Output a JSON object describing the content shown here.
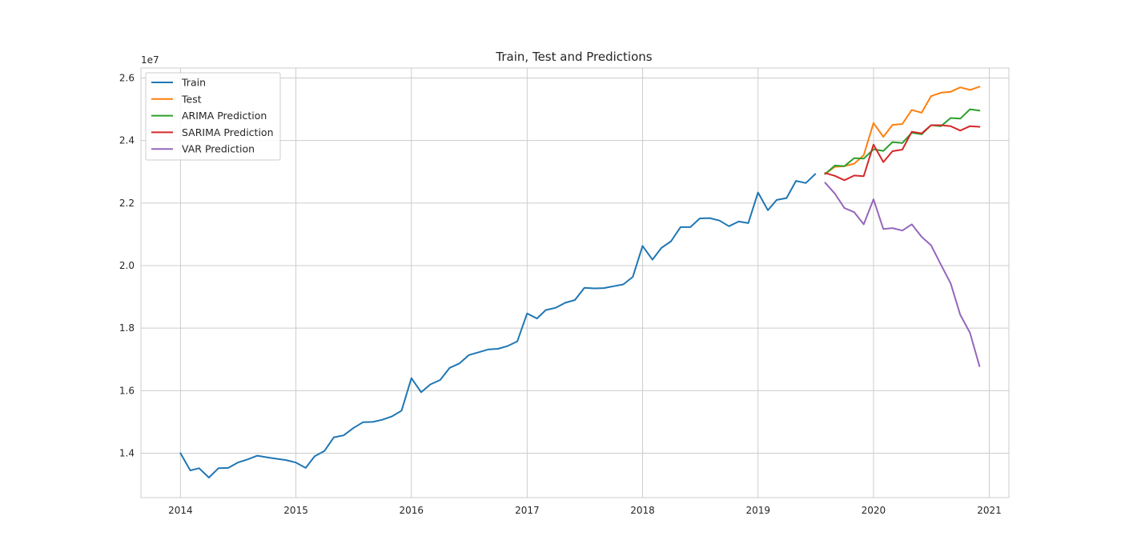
{
  "chart_data": {
    "type": "line",
    "title": "Train, Test and Predictions",
    "xlabel": "",
    "ylabel": "",
    "y_scale_label": "1e7",
    "x_axis_kind": "date",
    "xlim": [
      "2013-08-29",
      "2021-03-04"
    ],
    "ylim": [
      12.58,
      26.32
    ],
    "y_multiplier": 10000000,
    "x_ticks": [
      {
        "date": "2014-01-01",
        "label": "2014"
      },
      {
        "date": "2015-01-01",
        "label": "2015"
      },
      {
        "date": "2016-01-01",
        "label": "2016"
      },
      {
        "date": "2017-01-01",
        "label": "2017"
      },
      {
        "date": "2018-01-01",
        "label": "2018"
      },
      {
        "date": "2019-01-01",
        "label": "2019"
      },
      {
        "date": "2020-01-01",
        "label": "2020"
      },
      {
        "date": "2021-01-01",
        "label": "2021"
      }
    ],
    "y_ticks": [
      {
        "value": 14,
        "label": "1.4"
      },
      {
        "value": 16,
        "label": "1.6"
      },
      {
        "value": 18,
        "label": "1.8"
      },
      {
        "value": 20,
        "label": "2.0"
      },
      {
        "value": 22,
        "label": "2.2"
      },
      {
        "value": 24,
        "label": "2.4"
      },
      {
        "value": 26,
        "label": "2.6"
      }
    ],
    "grid": true,
    "legend_position": "top-left",
    "series": [
      {
        "name": "Train",
        "color": "#1f77b4",
        "x": [
          "2014-01",
          "2014-02",
          "2014-03",
          "2014-04",
          "2014-05",
          "2014-06",
          "2014-07",
          "2014-08",
          "2014-09",
          "2014-10",
          "2014-11",
          "2014-12",
          "2015-01",
          "2015-02",
          "2015-03",
          "2015-04",
          "2015-05",
          "2015-06",
          "2015-07",
          "2015-08",
          "2015-09",
          "2015-10",
          "2015-11",
          "2015-12",
          "2016-01",
          "2016-02",
          "2016-03",
          "2016-04",
          "2016-05",
          "2016-06",
          "2016-07",
          "2016-08",
          "2016-09",
          "2016-10",
          "2016-11",
          "2016-12",
          "2017-01",
          "2017-02",
          "2017-03",
          "2017-04",
          "2017-05",
          "2017-06",
          "2017-07",
          "2017-08",
          "2017-09",
          "2017-10",
          "2017-11",
          "2017-12",
          "2018-01",
          "2018-02",
          "2018-03",
          "2018-04",
          "2018-05",
          "2018-06",
          "2018-07",
          "2018-08",
          "2018-09",
          "2018-10",
          "2018-11",
          "2018-12",
          "2019-01",
          "2019-02",
          "2019-03",
          "2019-04",
          "2019-05",
          "2019-06",
          "2019-07"
        ],
        "values": [
          14.0,
          13.45,
          13.52,
          13.22,
          13.52,
          13.53,
          13.7,
          13.8,
          13.92,
          13.87,
          13.82,
          13.78,
          13.7,
          13.53,
          13.9,
          14.07,
          14.51,
          14.57,
          14.8,
          14.99,
          15.0,
          15.07,
          15.18,
          15.36,
          16.4,
          15.95,
          16.2,
          16.34,
          16.73,
          16.87,
          17.14,
          17.23,
          17.32,
          17.34,
          17.43,
          17.58,
          18.47,
          18.31,
          18.58,
          18.65,
          18.81,
          18.9,
          19.29,
          19.27,
          19.28,
          19.34,
          19.4,
          19.64,
          20.63,
          20.19,
          20.56,
          20.78,
          21.23,
          21.23,
          21.51,
          21.52,
          21.44,
          21.26,
          21.41,
          21.36,
          22.34,
          21.77,
          22.1,
          22.16,
          22.71,
          22.64,
          22.93
        ]
      },
      {
        "name": "Test",
        "color": "#ff7f0e",
        "x": [
          "2019-08",
          "2019-09",
          "2019-10",
          "2019-11",
          "2019-12",
          "2020-01",
          "2020-02",
          "2020-03",
          "2020-04",
          "2020-05",
          "2020-06",
          "2020-07",
          "2020-08",
          "2020-09",
          "2020-10",
          "2020-11",
          "2020-12"
        ],
        "values": [
          22.93,
          23.16,
          23.18,
          23.26,
          23.53,
          24.56,
          24.12,
          24.5,
          24.53,
          24.98,
          24.89,
          25.42,
          25.53,
          25.56,
          25.7,
          25.62,
          25.72
        ]
      },
      {
        "name": "ARIMA Prediction",
        "color": "#2ca02c",
        "x": [
          "2019-08",
          "2019-09",
          "2019-10",
          "2019-11",
          "2019-12",
          "2020-01",
          "2020-02",
          "2020-03",
          "2020-04",
          "2020-05",
          "2020-06",
          "2020-07",
          "2020-08",
          "2020-09",
          "2020-10",
          "2020-11",
          "2020-12"
        ],
        "values": [
          22.93,
          23.2,
          23.18,
          23.44,
          23.42,
          23.72,
          23.67,
          23.95,
          23.92,
          24.25,
          24.2,
          24.49,
          24.46,
          24.72,
          24.7,
          25.0,
          24.96
        ]
      },
      {
        "name": "SARIMA Prediction",
        "color": "#d62728",
        "x": [
          "2019-08",
          "2019-09",
          "2019-10",
          "2019-11",
          "2019-12",
          "2020-01",
          "2020-02",
          "2020-03",
          "2020-04",
          "2020-05",
          "2020-06",
          "2020-07",
          "2020-08",
          "2020-09",
          "2020-10",
          "2020-11",
          "2020-12"
        ],
        "values": [
          22.96,
          22.87,
          22.73,
          22.88,
          22.86,
          23.87,
          23.31,
          23.66,
          23.71,
          24.28,
          24.23,
          24.49,
          24.49,
          24.46,
          24.32,
          24.46,
          24.44
        ]
      },
      {
        "name": "VAR Prediction",
        "color": "#9467bd",
        "x": [
          "2019-08",
          "2019-09",
          "2019-10",
          "2019-11",
          "2019-12",
          "2020-01",
          "2020-02",
          "2020-03",
          "2020-04",
          "2020-05",
          "2020-06",
          "2020-07",
          "2020-08",
          "2020-09",
          "2020-10",
          "2020-11",
          "2020-12"
        ],
        "values": [
          22.65,
          22.3,
          21.84,
          21.71,
          21.32,
          22.12,
          21.17,
          21.2,
          21.12,
          21.32,
          20.92,
          20.65,
          20.03,
          19.43,
          18.43,
          17.85,
          16.78
        ]
      }
    ]
  }
}
